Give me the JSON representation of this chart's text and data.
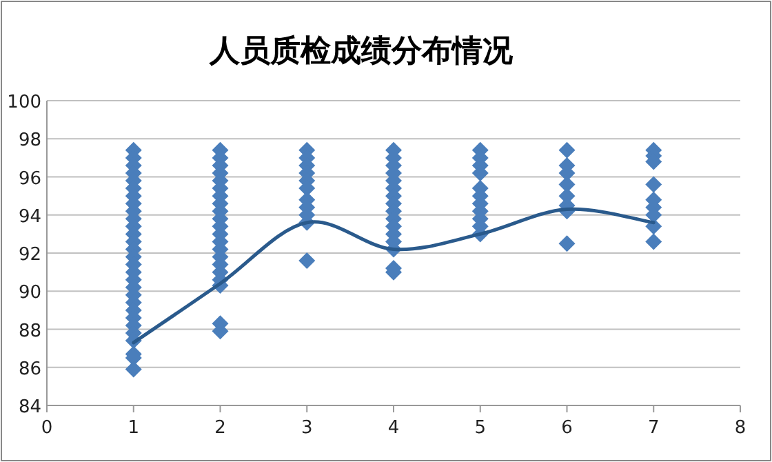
{
  "chart_data": {
    "type": "scatter",
    "title": "人员质检成绩分布情况",
    "grid": "y",
    "xlim": [
      0,
      8
    ],
    "xticks": [
      0,
      1,
      2,
      3,
      4,
      5,
      6,
      7,
      8
    ],
    "ylim": [
      84,
      100
    ],
    "yticks": [
      84,
      86,
      88,
      90,
      92,
      94,
      96,
      98,
      100
    ],
    "series": [
      {
        "color": "#4a7ebb",
        "marker": "diamond",
        "x": [
          1,
          1,
          1,
          1,
          1,
          1,
          1,
          1,
          1,
          1,
          1,
          1,
          1,
          1,
          1,
          1,
          1,
          1,
          1,
          1,
          1,
          1,
          1,
          1,
          1,
          1,
          1,
          1,
          1,
          2,
          2,
          2,
          2,
          2,
          2,
          2,
          2,
          2,
          2,
          2,
          2,
          2,
          2,
          2,
          2,
          2,
          2,
          2,
          2,
          2,
          3,
          3,
          3,
          3,
          3,
          3,
          3,
          3,
          3,
          3,
          3,
          4,
          4,
          4,
          4,
          4,
          4,
          4,
          4,
          4,
          4,
          4,
          4,
          4,
          4,
          4,
          4,
          5,
          5,
          5,
          5,
          5,
          5,
          5,
          5,
          5,
          5,
          5,
          6,
          6,
          6,
          6,
          6,
          6,
          6,
          6,
          7,
          7,
          7,
          7,
          7,
          7,
          7,
          7,
          7
        ],
        "values": [
          97.4,
          97,
          96.6,
          96.2,
          95.8,
          95.4,
          95,
          94.6,
          94.2,
          93.8,
          93.4,
          93,
          92.6,
          92.2,
          91.8,
          91.4,
          91,
          90.6,
          90.2,
          89.8,
          89.4,
          89,
          88.6,
          88.2,
          87.8,
          87.4,
          86.7,
          86.5,
          85.9,
          97.4,
          97,
          96.6,
          96.2,
          95.8,
          95.4,
          95,
          94.6,
          94.2,
          93.8,
          93.4,
          93,
          92.6,
          92.2,
          91.8,
          91.4,
          91,
          90.6,
          90.3,
          88.3,
          87.9,
          97.4,
          97,
          96.6,
          96.2,
          95.8,
          95.4,
          94.8,
          94.4,
          94,
          93.6,
          91.6,
          97.4,
          97,
          96.6,
          96.2,
          95.8,
          95.4,
          95,
          94.6,
          94.2,
          93.8,
          93.4,
          93,
          92.6,
          92.2,
          91.2,
          91,
          97.4,
          97,
          96.6,
          96.2,
          95.4,
          95,
          94.6,
          94.2,
          93.8,
          93.4,
          93,
          97.4,
          96.6,
          96.2,
          95.6,
          95,
          94.5,
          94.2,
          92.5,
          97.4,
          97.1,
          96.8,
          95.6,
          94.8,
          94.4,
          94,
          93.4,
          92.6
        ]
      },
      {
        "type": "line",
        "marker": "none",
        "color": "#2a5a8c",
        "x": [
          1,
          2,
          3,
          4,
          5,
          6,
          7
        ],
        "values": [
          87.3,
          90.4,
          93.6,
          92.2,
          93,
          94.3,
          93.6
        ]
      }
    ]
  }
}
